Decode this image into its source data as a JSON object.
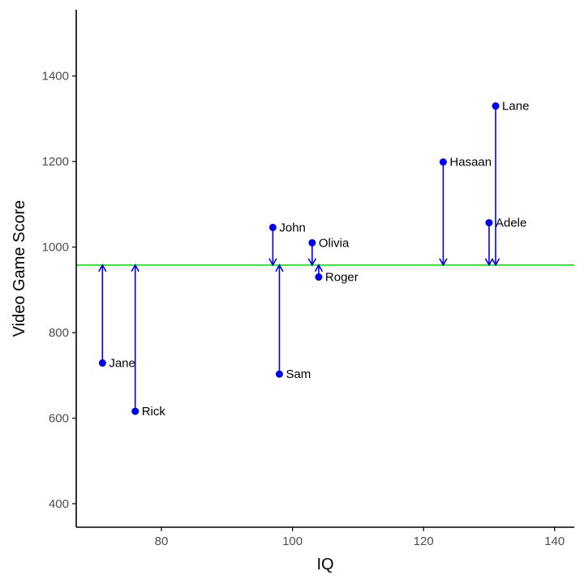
{
  "chart_data": {
    "type": "scatter",
    "title": "",
    "xlabel": "IQ",
    "ylabel": "Video Game Score",
    "xlim": [
      67,
      143
    ],
    "ylim": [
      345,
      1555
    ],
    "x_ticks": [
      80,
      100,
      120,
      140
    ],
    "y_ticks": [
      400,
      600,
      800,
      1000,
      1200,
      1400
    ],
    "x_tick_labels": [
      "80",
      "100",
      "120",
      "140"
    ],
    "y_tick_labels": [
      "400",
      "600",
      "800",
      "1000",
      "1200",
      "1400"
    ],
    "mean_line": 958,
    "points": [
      {
        "label": "Jane",
        "x": 71,
        "y": 729
      },
      {
        "label": "Rick",
        "x": 76,
        "y": 616
      },
      {
        "label": "John",
        "x": 97,
        "y": 1046
      },
      {
        "label": "Sam",
        "x": 98,
        "y": 703
      },
      {
        "label": "Olivia",
        "x": 103,
        "y": 1010
      },
      {
        "label": "Roger",
        "x": 104,
        "y": 930
      },
      {
        "label": "Hasaan",
        "x": 123,
        "y": 1199
      },
      {
        "label": "Adele",
        "x": 130,
        "y": 1057
      },
      {
        "label": "Lane",
        "x": 131,
        "y": 1330
      }
    ],
    "grid": false,
    "colors": {
      "points": "#0000ee",
      "arrows": "#0000ee",
      "mean_line": "#00ee00",
      "axis": "#000000"
    }
  }
}
